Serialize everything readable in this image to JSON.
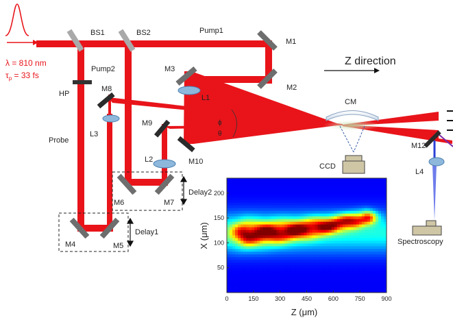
{
  "pulse": {
    "wavelength": "λ = 810 nm",
    "duration_symbol": "τ",
    "duration_sub": "p",
    "duration_value": " = 33 fs"
  },
  "beam_labels": {
    "pump1": "Pump1",
    "pump2": "Pump2",
    "probe": "Probe"
  },
  "components": {
    "bs1": "BS1",
    "bs2": "BS2",
    "hp": "HP",
    "m1": "M1",
    "m2": "M2",
    "m3": "M3",
    "m4": "M4",
    "m5": "M5",
    "m6": "M6",
    "m7": "M7",
    "m8": "M8",
    "m9": "M9",
    "m10": "M10",
    "m12": "M12",
    "l1": "L1",
    "l2": "L2",
    "l3": "L3",
    "l4": "L4",
    "cm": "CM",
    "ccd": "CCD",
    "spectroscopy": "Spectroscopy"
  },
  "delays": {
    "delay1": "Delay1",
    "delay2": "Delay2"
  },
  "angles": {
    "phi": "ϕ",
    "theta": "θ"
  },
  "direction_label": "Z direction",
  "colors": {
    "beam": "#e8141a",
    "mirror": "#6e6e6e",
    "lens": "#8db8dc",
    "ccd_box": "#cfc6a6"
  },
  "chart_data": {
    "type": "heatmap",
    "xlabel": "Z (μm)",
    "ylabel": "X (μm)",
    "xlim": [
      0,
      900
    ],
    "ylim": [
      0,
      230
    ],
    "xticks": [
      0,
      150,
      300,
      450,
      600,
      750,
      900
    ],
    "yticks": [
      50,
      100,
      150,
      200
    ],
    "colormap": "jet",
    "features": [
      {
        "kind": "filament",
        "z_start": 120,
        "z_end": 780,
        "x_start": 118,
        "x_end": 150
      }
    ]
  }
}
